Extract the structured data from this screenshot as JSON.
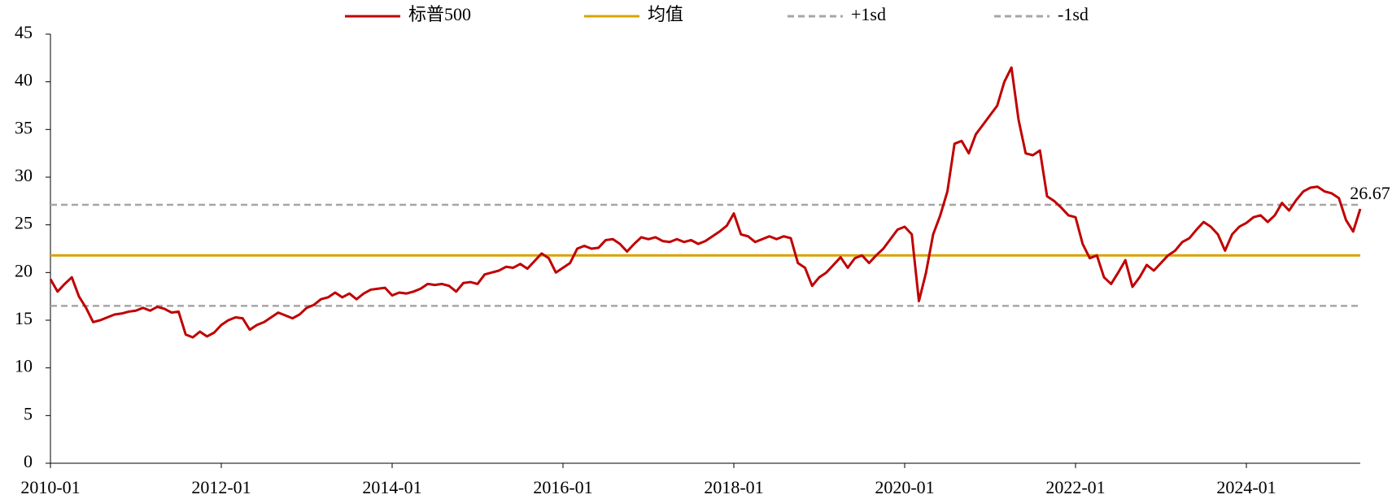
{
  "chart_data": {
    "type": "line",
    "x": [
      "2010-01",
      "2010-02",
      "2010-03",
      "2010-04",
      "2010-05",
      "2010-06",
      "2010-07",
      "2010-08",
      "2010-09",
      "2010-10",
      "2010-11",
      "2010-12",
      "2011-01",
      "2011-02",
      "2011-03",
      "2011-04",
      "2011-05",
      "2011-06",
      "2011-07",
      "2011-08",
      "2011-09",
      "2011-10",
      "2011-11",
      "2011-12",
      "2012-01",
      "2012-02",
      "2012-03",
      "2012-04",
      "2012-05",
      "2012-06",
      "2012-07",
      "2012-08",
      "2012-09",
      "2012-10",
      "2012-11",
      "2012-12",
      "2013-01",
      "2013-02",
      "2013-03",
      "2013-04",
      "2013-05",
      "2013-06",
      "2013-07",
      "2013-08",
      "2013-09",
      "2013-10",
      "2013-11",
      "2013-12",
      "2014-01",
      "2014-02",
      "2014-03",
      "2014-04",
      "2014-05",
      "2014-06",
      "2014-07",
      "2014-08",
      "2014-09",
      "2014-10",
      "2014-11",
      "2014-12",
      "2015-01",
      "2015-02",
      "2015-03",
      "2015-04",
      "2015-05",
      "2015-06",
      "2015-07",
      "2015-08",
      "2015-09",
      "2015-10",
      "2015-11",
      "2015-12",
      "2016-01",
      "2016-02",
      "2016-03",
      "2016-04",
      "2016-05",
      "2016-06",
      "2016-07",
      "2016-08",
      "2016-09",
      "2016-10",
      "2016-11",
      "2016-12",
      "2017-01",
      "2017-02",
      "2017-03",
      "2017-04",
      "2017-05",
      "2017-06",
      "2017-07",
      "2017-08",
      "2017-09",
      "2017-10",
      "2017-11",
      "2017-12",
      "2018-01",
      "2018-02",
      "2018-03",
      "2018-04",
      "2018-05",
      "2018-06",
      "2018-07",
      "2018-08",
      "2018-09",
      "2018-10",
      "2018-11",
      "2018-12",
      "2019-01",
      "2019-02",
      "2019-03",
      "2019-04",
      "2019-05",
      "2019-06",
      "2019-07",
      "2019-08",
      "2019-09",
      "2019-10",
      "2019-11",
      "2019-12",
      "2020-01",
      "2020-02",
      "2020-03",
      "2020-04",
      "2020-05",
      "2020-06",
      "2020-07",
      "2020-08",
      "2020-09",
      "2020-10",
      "2020-11",
      "2020-12",
      "2021-01",
      "2021-02",
      "2021-03",
      "2021-04",
      "2021-05",
      "2021-06",
      "2021-07",
      "2021-08",
      "2021-09",
      "2021-10",
      "2021-11",
      "2021-12",
      "2022-01",
      "2022-02",
      "2022-03",
      "2022-04",
      "2022-05",
      "2022-06",
      "2022-07",
      "2022-08",
      "2022-09",
      "2022-10",
      "2022-11",
      "2022-12",
      "2023-01",
      "2023-02",
      "2023-03",
      "2023-04",
      "2023-05",
      "2023-06",
      "2023-07",
      "2023-08",
      "2023-09",
      "2023-10",
      "2023-11",
      "2023-12",
      "2024-01",
      "2024-02",
      "2024-03",
      "2024-04",
      "2024-05",
      "2024-06",
      "2024-07",
      "2024-08",
      "2024-09",
      "2024-10",
      "2024-11",
      "2024-12",
      "2025-01",
      "2025-02",
      "2025-03",
      "2025-04",
      "2025-05"
    ],
    "series": [
      {
        "name": "标普500",
        "color": "#c00000",
        "end_label": true,
        "values": [
          19.3,
          18.0,
          18.8,
          19.5,
          17.5,
          16.3,
          14.8,
          15.0,
          15.3,
          15.6,
          15.7,
          15.9,
          16.0,
          16.3,
          16.0,
          16.4,
          16.2,
          15.8,
          15.9,
          13.5,
          13.2,
          13.8,
          13.3,
          13.7,
          14.5,
          15.0,
          15.3,
          15.2,
          14.0,
          14.5,
          14.8,
          15.3,
          15.8,
          15.5,
          15.2,
          15.6,
          16.3,
          16.6,
          17.2,
          17.4,
          17.9,
          17.4,
          17.8,
          17.2,
          17.8,
          18.2,
          18.3,
          18.4,
          17.6,
          17.9,
          17.8,
          18.0,
          18.3,
          18.8,
          18.7,
          18.8,
          18.6,
          18.0,
          18.9,
          19.0,
          18.8,
          19.8,
          20.0,
          20.2,
          20.6,
          20.5,
          20.9,
          20.4,
          21.2,
          22.0,
          21.5,
          20.0,
          20.5,
          21.0,
          22.5,
          22.8,
          22.5,
          22.6,
          23.4,
          23.5,
          23.0,
          22.2,
          23.0,
          23.7,
          23.5,
          23.7,
          23.3,
          23.2,
          23.5,
          23.2,
          23.4,
          23.0,
          23.3,
          23.8,
          24.3,
          24.9,
          26.2,
          24.0,
          23.8,
          23.2,
          23.5,
          23.8,
          23.5,
          23.8,
          23.6,
          21.0,
          20.5,
          18.6,
          19.5,
          20.0,
          20.8,
          21.6,
          20.5,
          21.5,
          21.8,
          21.0,
          21.8,
          22.5,
          23.5,
          24.5,
          24.8,
          24.0,
          17.0,
          20.0,
          24.0,
          26.0,
          28.5,
          33.5,
          33.8,
          32.5,
          34.5,
          35.5,
          36.5,
          37.5,
          40.0,
          41.5,
          36.0,
          32.5,
          32.3,
          32.8,
          28.0,
          27.5,
          26.8,
          26.0,
          25.8,
          23.0,
          21.5,
          21.8,
          19.5,
          18.8,
          20.0,
          21.3,
          18.5,
          19.5,
          20.8,
          20.2,
          21.0,
          21.8,
          22.3,
          23.2,
          23.6,
          24.5,
          25.3,
          24.8,
          24.0,
          22.3,
          24.0,
          24.8,
          25.2,
          25.8,
          26.0,
          25.3,
          26.0,
          27.3,
          26.5,
          27.6,
          28.5,
          28.9,
          29.0,
          28.5,
          28.3,
          27.8,
          25.5,
          24.3,
          26.67
        ]
      }
    ],
    "reference_lines": [
      {
        "name": "均值",
        "value": 21.8,
        "color": "#d9a300",
        "dashed": false
      },
      {
        "name": "+1sd",
        "value": 27.1,
        "color": "#a6a6a6",
        "dashed": true
      },
      {
        "name": "-1sd",
        "value": 16.5,
        "color": "#a6a6a6",
        "dashed": true
      }
    ],
    "xlim": [
      "2010-01",
      "2025-05"
    ],
    "xticks": [
      "2010-01",
      "2012-01",
      "2014-01",
      "2016-01",
      "2018-01",
      "2020-01",
      "2022-01",
      "2024-01"
    ],
    "ylim": [
      0,
      45
    ],
    "yticks": [
      0,
      5,
      10,
      15,
      20,
      25,
      30,
      35,
      40,
      45
    ],
    "legend": "top"
  }
}
